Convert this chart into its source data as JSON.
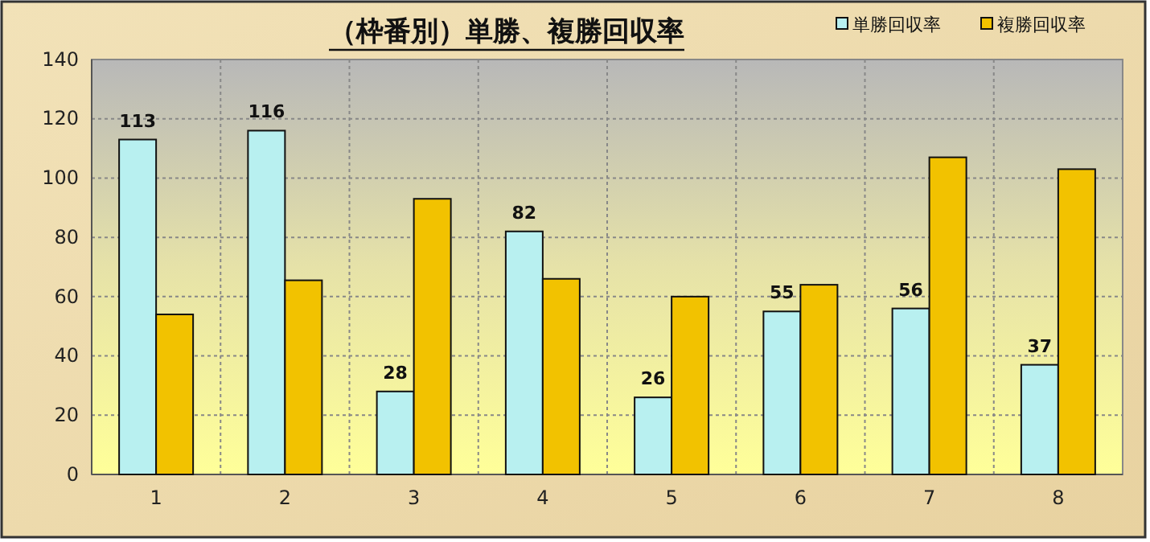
{
  "chart_data": {
    "type": "bar",
    "title": "（枠番別）単勝、複勝回収率",
    "categories": [
      "1",
      "2",
      "3",
      "4",
      "5",
      "6",
      "7",
      "8"
    ],
    "series": [
      {
        "name": "単勝回収率",
        "color": "#b8f0f0",
        "values": [
          113,
          116,
          28,
          82,
          26,
          55,
          56,
          37
        ],
        "value_labels": [
          "113",
          "116",
          "28",
          "82",
          "26",
          "55",
          "56",
          "37"
        ]
      },
      {
        "name": "複勝回収率",
        "color": "#f2c200",
        "values": [
          54,
          65.5,
          93,
          66,
          60,
          64,
          107,
          103
        ]
      }
    ],
    "ylim": [
      0,
      140
    ],
    "yticks": [
      0,
      20,
      40,
      60,
      80,
      100,
      120,
      140
    ],
    "grid": true,
    "legend": "top right"
  }
}
